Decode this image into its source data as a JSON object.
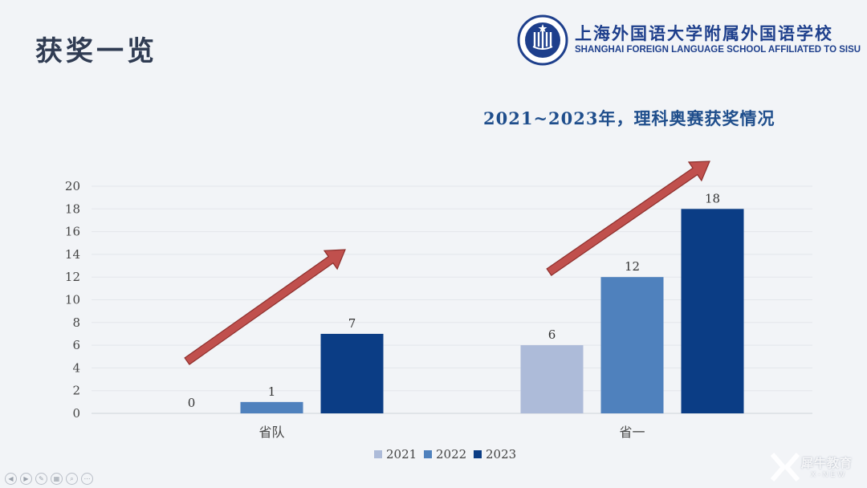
{
  "slide": {
    "title": "获奖一览"
  },
  "logo": {
    "name_cn": "上海外国语大学附属外国语学校",
    "name_en": "SHANGHAI FOREIGN LANGUAGE SCHOOL AFFILIATED TO SISU",
    "seal_text": "SFLS 1963",
    "icon": "school-seal-icon",
    "color": "#1e3f8c"
  },
  "watermark": {
    "cn": "犀牛教育",
    "en": "X-NEW"
  },
  "chart_data": {
    "type": "bar",
    "title": "2021~2023年，理科奥赛获奖情况",
    "categories": [
      "省队",
      "省一"
    ],
    "series": [
      {
        "name": "2021",
        "values": [
          0,
          6
        ],
        "color": "#adbbd9"
      },
      {
        "name": "2022",
        "values": [
          1,
          12
        ],
        "color": "#4f81bd"
      },
      {
        "name": "2023",
        "values": [
          7,
          18
        ],
        "color": "#0b3d85"
      }
    ],
    "data_labels": [
      [
        0,
        6
      ],
      [
        1,
        12
      ],
      [
        7,
        18
      ]
    ],
    "ylim": [
      0,
      20
    ],
    "yticks": [
      0,
      2,
      4,
      6,
      8,
      10,
      12,
      14,
      16,
      18,
      20
    ],
    "xlabel": "",
    "ylabel": "",
    "grid": true,
    "legend": "bottom-center",
    "annotations": [
      {
        "type": "arrow",
        "color": "#c0504d",
        "category": "省队"
      },
      {
        "type": "arrow",
        "color": "#c0504d",
        "category": "省一"
      }
    ]
  },
  "toolbar": {
    "icons": [
      "prev-icon",
      "play-icon",
      "pen-icon",
      "slides-icon",
      "zoom-icon",
      "more-icon"
    ]
  }
}
